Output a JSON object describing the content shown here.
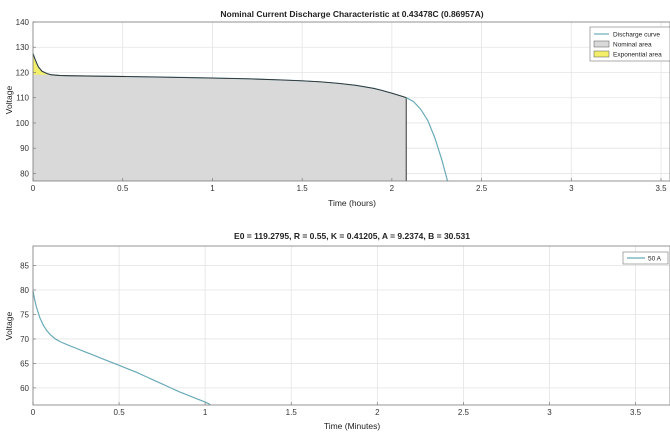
{
  "chart_data": [
    {
      "type": "line",
      "title": "Nominal Current Discharge Characteristic at 0.43478C (0.86957A)",
      "xlabel": "Time (hours)",
      "ylabel": "Voltage",
      "xlim": [
        0,
        3.55
      ],
      "ylim": [
        77,
        140
      ],
      "xticks": [
        0,
        0.5,
        1,
        1.5,
        2,
        2.5,
        3,
        3.5
      ],
      "yticks": [
        80,
        90,
        100,
        110,
        120,
        130,
        140
      ],
      "grid": true,
      "legend_position": "top-right",
      "series": [
        {
          "name": "Discharge curve",
          "color": "#6aaab8",
          "x": [
            0,
            0.005,
            0.01,
            0.02,
            0.03,
            0.05,
            0.08,
            0.1,
            0.15,
            0.2,
            0.3,
            0.5,
            0.7,
            1.0,
            1.2,
            1.4,
            1.5,
            1.6,
            1.7,
            1.8,
            1.9,
            1.95,
            2.0,
            2.05,
            2.08,
            2.12,
            2.16,
            2.2,
            2.24,
            2.28,
            2.31
          ],
          "y": [
            127.5,
            126.5,
            125.5,
            123.8,
            122.2,
            120.5,
            119.5,
            119.1,
            118.8,
            118.7,
            118.6,
            118.4,
            118.2,
            117.8,
            117.5,
            117.0,
            116.7,
            116.3,
            115.7,
            114.9,
            113.7,
            112.8,
            111.8,
            110.7,
            110.0,
            108.5,
            105.5,
            101.0,
            94.0,
            85.0,
            77.0
          ]
        }
      ],
      "areas": [
        {
          "name": "Nominal area",
          "color": "#d9d9d9",
          "x_end": 2.08
        },
        {
          "name": "Exponential area",
          "color": "#f2ee6a",
          "x_end": 0.1
        }
      ]
    },
    {
      "type": "line",
      "title": "E0 = 119.2795, R = 0.55, K = 0.41205, A = 9.2374, B = 30.531",
      "xlabel": "Time (Minutes)",
      "ylabel": "Voltage",
      "xlim": [
        0,
        3.7
      ],
      "ylim": [
        56.5,
        89
      ],
      "xticks": [
        0,
        0.5,
        1,
        1.5,
        2,
        2.5,
        3,
        3.5
      ],
      "yticks": [
        60,
        65,
        70,
        75,
        80,
        85
      ],
      "grid": true,
      "legend_position": "top-right",
      "series": [
        {
          "name": "50 A",
          "color": "#6aaab8",
          "x": [
            0,
            0.01,
            0.02,
            0.04,
            0.06,
            0.08,
            0.1,
            0.13,
            0.16,
            0.2,
            0.25,
            0.3,
            0.35,
            0.4,
            0.45,
            0.5,
            0.55,
            0.6,
            0.65,
            0.7,
            0.75,
            0.8,
            0.85,
            0.9,
            0.95,
            1.0,
            1.03
          ],
          "y": [
            79.8,
            78.0,
            76.5,
            74.3,
            72.8,
            71.7,
            70.9,
            70.0,
            69.4,
            68.8,
            68.1,
            67.4,
            66.7,
            66.0,
            65.3,
            64.6,
            63.9,
            63.2,
            62.4,
            61.6,
            60.8,
            60.0,
            59.2,
            58.5,
            57.8,
            57.1,
            56.6
          ]
        }
      ]
    }
  ]
}
